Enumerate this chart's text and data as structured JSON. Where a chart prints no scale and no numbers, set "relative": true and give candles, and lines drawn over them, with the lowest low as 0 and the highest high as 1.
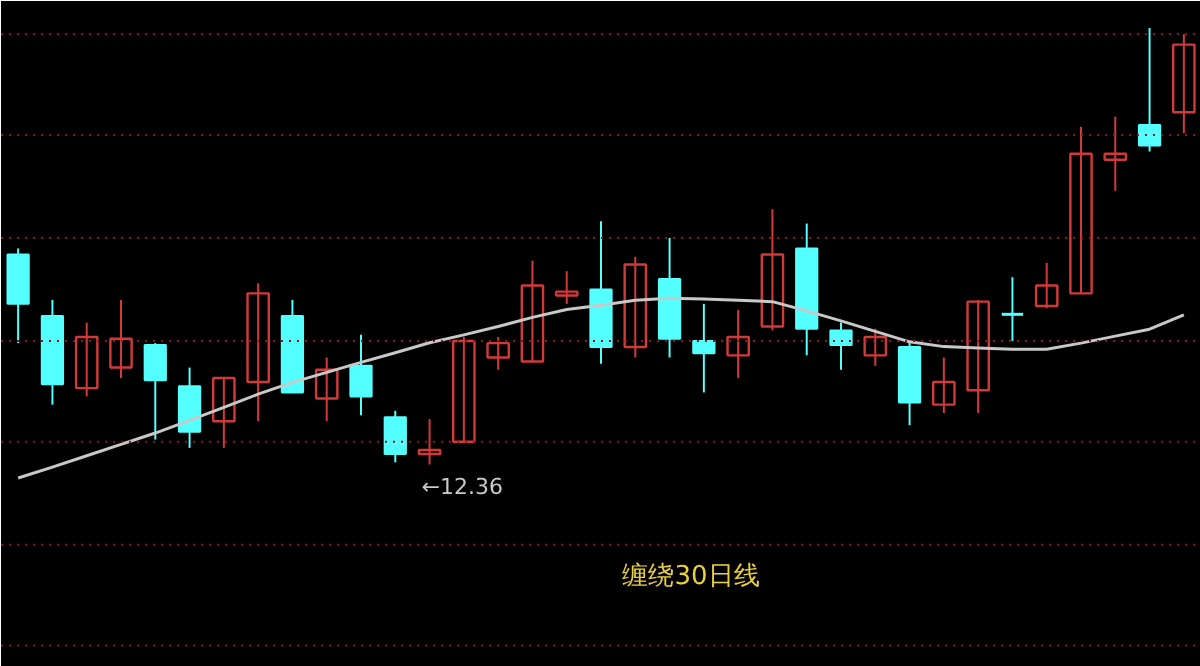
{
  "chart_data": {
    "type": "candlestick",
    "relative": true,
    "ref_lines": [
      {
        "axis": "y",
        "value": 0.986,
        "color": "#8a1a1a",
        "line_style": "dotted"
      },
      {
        "axis": "y",
        "value": 0.755,
        "color": "#8a1a1a",
        "line_style": "dotted"
      },
      {
        "axis": "y",
        "value": 0.519,
        "color": "#8a1a1a",
        "line_style": "dotted"
      },
      {
        "axis": "y",
        "value": 0.283,
        "color": "#8a1a1a",
        "line_style": "dotted"
      },
      {
        "axis": "y",
        "value": 0.052,
        "color": "#8a1a1a",
        "line_style": "dotted"
      },
      {
        "axis": "y",
        "value": -0.184,
        "color": "#8a1a1a",
        "line_style": "dotted"
      },
      {
        "axis": "y",
        "value": -0.415,
        "color": "#8a1a1a",
        "line_style": "dotted"
      }
    ],
    "categories": [
      null,
      null,
      null,
      null,
      null,
      null,
      null,
      null,
      null,
      null,
      null,
      null,
      null,
      null,
      null,
      null,
      null,
      null,
      null,
      null,
      null,
      null,
      null,
      null,
      null,
      null,
      null,
      null,
      null,
      null,
      null,
      null,
      null,
      null,
      null
    ],
    "ohlc": [
      [
        0.481,
        0.495,
        0.278,
        0.368
      ],
      [
        0.34,
        0.377,
        0.137,
        0.184
      ],
      [
        0.175,
        0.325,
        0.156,
        0.292
      ],
      [
        0.222,
        0.377,
        0.198,
        0.288
      ],
      [
        0.274,
        0.278,
        0.057,
        0.193
      ],
      [
        0.179,
        0.222,
        0.038,
        0.075
      ],
      [
        0.099,
        0.198,
        0.038,
        0.198
      ],
      [
        0.189,
        0.415,
        0.099,
        0.392
      ],
      [
        0.34,
        0.377,
        0.165,
        0.165
      ],
      [
        0.151,
        0.245,
        0.099,
        0.217
      ],
      [
        0.226,
        0.297,
        0.113,
        0.156
      ],
      [
        0.108,
        0.123,
        0.005,
        0.024
      ],
      [
        0.024,
        0.104,
        0,
        0.033
      ],
      [
        0.052,
        0.292,
        0.052,
        0.283
      ],
      [
        0.245,
        0.292,
        0.217,
        0.278
      ],
      [
        0.236,
        0.467,
        0.236,
        0.41
      ],
      [
        0.387,
        0.443,
        0.368,
        0.396
      ],
      [
        0.401,
        0.557,
        0.231,
        0.269
      ],
      [
        0.269,
        0.476,
        0.245,
        0.458
      ],
      [
        0.425,
        0.519,
        0.245,
        0.288
      ],
      [
        0.283,
        0.368,
        0.165,
        0.255
      ],
      [
        0.25,
        0.354,
        0.198,
        0.292
      ],
      [
        0.316,
        0.585,
        0.307,
        0.481
      ],
      [
        0.495,
        0.552,
        0.25,
        0.311
      ],
      [
        0.307,
        0.325,
        0.217,
        0.274
      ],
      [
        0.25,
        0.311,
        0.226,
        0.292
      ],
      [
        0.269,
        0.283,
        0.09,
        0.142
      ],
      [
        0.137,
        0.245,
        0.118,
        0.189
      ],
      [
        0.17,
        0.377,
        0.118,
        0.373
      ],
      [
        0.344,
        0.429,
        0.283,
        0.344
      ],
      [
        0.363,
        0.462,
        0.358,
        0.41
      ],
      [
        0.392,
        0.774,
        0.392,
        0.712
      ],
      [
        0.698,
        0.797,
        0.627,
        0.712
      ],
      [
        0.778,
        1,
        0.717,
        0.731
      ],
      [
        0.807,
        0.986,
        0.759,
        0.962
      ]
    ],
    "colors": [
      "#54ffff",
      "#54ffff",
      "#d23a3a",
      "#d23a3a",
      "#54ffff",
      "#54ffff",
      "#d23a3a",
      "#d23a3a",
      "#54ffff",
      "#d23a3a",
      "#54ffff",
      "#54ffff",
      "#d23a3a",
      "#d23a3a",
      "#d23a3a",
      "#d23a3a",
      "#d23a3a",
      "#54ffff",
      "#d23a3a",
      "#54ffff",
      "#54ffff",
      "#d23a3a",
      "#d23a3a",
      "#54ffff",
      "#54ffff",
      "#d23a3a",
      "#54ffff",
      "#d23a3a",
      "#d23a3a",
      "#54ffff",
      "#d23a3a",
      "#d23a3a",
      "#d23a3a",
      "#54ffff",
      "#d23a3a"
    ],
    "series": [
      {
        "type": "line",
        "color": "#c8c8c8",
        "values": [
          -0.031,
          -0.006,
          0.02,
          0.046,
          0.072,
          0.101,
          0.131,
          0.161,
          0.188,
          0.211,
          0.234,
          0.256,
          0.279,
          0.297,
          0.316,
          0.337,
          0.355,
          0.365,
          0.376,
          0.381,
          0.379,
          0.376,
          0.373,
          0.352,
          0.329,
          0.305,
          0.281,
          0.27,
          0.267,
          0.264,
          0.264,
          0.278,
          0.294,
          0.31,
          0.343
        ]
      }
    ],
    "annotations": [
      "←12.36",
      "缠绕30日线"
    ]
  }
}
